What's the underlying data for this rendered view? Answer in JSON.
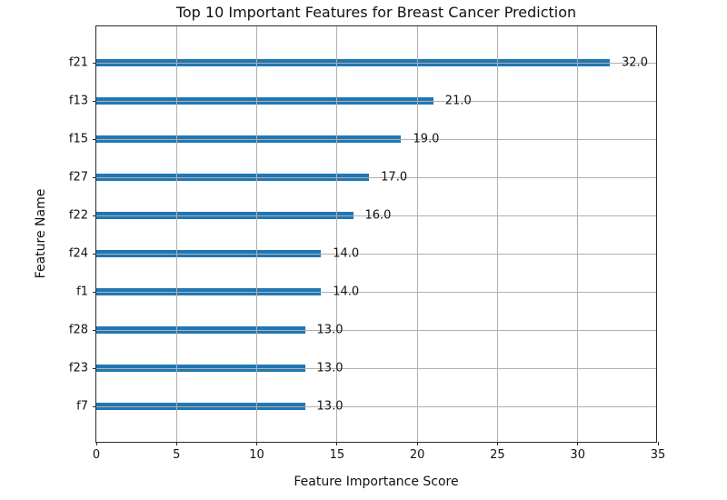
{
  "chart_data": {
    "type": "bar",
    "orientation": "horizontal",
    "title": "Top 10 Important Features for Breast Cancer Prediction",
    "xlabel": "Feature Importance Score",
    "ylabel": "Feature Name",
    "categories": [
      "f21",
      "f13",
      "f15",
      "f27",
      "f22",
      "f24",
      "f1",
      "f28",
      "f23",
      "f7"
    ],
    "values": [
      32.0,
      21.0,
      19.0,
      17.0,
      16.0,
      14.0,
      14.0,
      13.0,
      13.0,
      13.0
    ],
    "value_labels": [
      "32.0",
      "21.0",
      "19.0",
      "17.0",
      "16.0",
      "14.0",
      "14.0",
      "13.0",
      "13.0",
      "13.0"
    ],
    "xlim": [
      0,
      35
    ],
    "xticks": [
      0,
      5,
      10,
      15,
      20,
      25,
      30,
      35
    ],
    "grid": true,
    "grid_over_bars": true,
    "legend": "none",
    "bar_color": "#1f77b4",
    "grid_color": "#b0b0b0",
    "spine_color": "#2a2a2a",
    "text_color": "#111111"
  }
}
